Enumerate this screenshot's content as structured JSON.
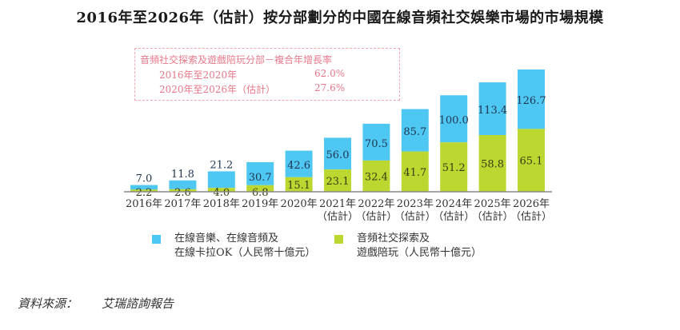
{
  "colors": {
    "blue": "#4fc7f3",
    "green": "#bcd830",
    "axis": "#888888",
    "cagr": "#e8788a"
  },
  "cagr_box": {
    "heading": "音頻社交探索及遊戲陪玩分部－複合年增長率",
    "rows": [
      {
        "period": "2016年至2020年",
        "value": "62.0%"
      },
      {
        "period": "2020年至2026年（估計）",
        "value": "27.6%"
      }
    ]
  },
  "source": {
    "label": "資料來源：",
    "value": "艾瑞諮詢報告"
  },
  "chart_data": {
    "type": "bar",
    "stacked": true,
    "title": "2016年至2026年（估計）按分部劃分的中國在線音頻社交娛樂市場的市場規模",
    "xlabel": "",
    "ylabel": "",
    "ylim": [
      0,
      130
    ],
    "grid": false,
    "legend_position": "bottom",
    "categories": [
      "2016年",
      "2017年",
      "2018年",
      "2019年",
      "2020年",
      "2021年",
      "2022年",
      "2023年",
      "2024年",
      "2025年",
      "2026年"
    ],
    "category_sublabels": [
      "",
      "",
      "",
      "",
      "",
      "（估計）",
      "（估計）",
      "（估計）",
      "（估計）",
      "（估計）",
      "（估計）"
    ],
    "totals": [
      7.0,
      11.8,
      21.2,
      30.7,
      42.6,
      56.0,
      70.5,
      85.7,
      100.0,
      113.4,
      126.7
    ],
    "total_labels": [
      "7.0",
      "11.8",
      "21.2",
      "30.7",
      "42.6",
      "56.0",
      "70.5",
      "85.7",
      "100.0",
      "113.4",
      "126.7"
    ],
    "series": [
      {
        "name": "音頻社交探索及遊戲陪玩（人民幣十億元）",
        "legend_lines": [
          "音頻社交探索及",
          "遊戲陪玩（人民幣十億元）"
        ],
        "color": "#bcd830",
        "values": [
          2.2,
          2.6,
          4.0,
          6.8,
          15.1,
          23.1,
          32.4,
          41.7,
          51.2,
          58.8,
          65.1
        ],
        "labels": [
          "2.2",
          "2.6",
          "4.0",
          "6.8",
          "15.1",
          "23.1",
          "32.4",
          "41.7",
          "51.2",
          "58.8",
          "65.1"
        ]
      },
      {
        "name": "在線音樂、在線音頻及在線卡拉OK（人民幣十億元）",
        "legend_lines": [
          "在線音樂、在線音頻及",
          "在線卡拉OK（人民幣十億元）"
        ],
        "color": "#4fc7f3",
        "values": [
          4.8,
          9.2,
          17.2,
          23.9,
          27.5,
          32.9,
          38.1,
          44.0,
          48.8,
          54.6,
          61.6
        ]
      }
    ]
  }
}
